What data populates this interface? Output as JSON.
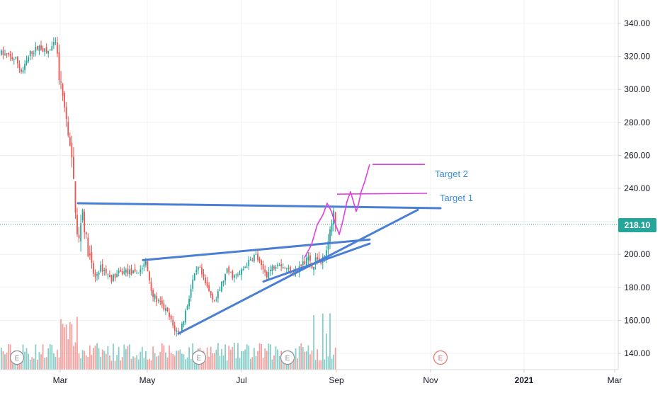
{
  "chart_data": {
    "type": "candlestick",
    "title": "",
    "xlabel": "",
    "ylabel": "",
    "x_ticks": [
      "Mar",
      "May",
      "Jul",
      "Sep",
      "Nov",
      "2021",
      "Mar"
    ],
    "y_ticks": [
      140,
      160,
      180,
      200,
      220,
      240,
      260,
      280,
      300,
      320,
      340
    ],
    "y_tick_labels": [
      "140.00",
      "160.00",
      "180.00",
      "200.00",
      "220.00",
      "240.00",
      "260.00",
      "280.00",
      "300.00",
      "320.00",
      "340.00"
    ],
    "ylim": [
      130,
      348
    ],
    "grid": true,
    "last_price": 218.1,
    "last_price_label": "218.10",
    "earnings_marker_label": "E",
    "annotations": {
      "target_1": "Target 1",
      "target_2": "Target 2"
    },
    "key_levels": {
      "resistance": 231,
      "target_1": 237,
      "target_2": 254.5
    },
    "colors": {
      "up": "#26a69a",
      "down": "#ef5350",
      "trendline": "#4a7fd6",
      "projection": "#e040e0",
      "target_text": "#3a8fd8",
      "price_line": "#26a69a"
    }
  }
}
